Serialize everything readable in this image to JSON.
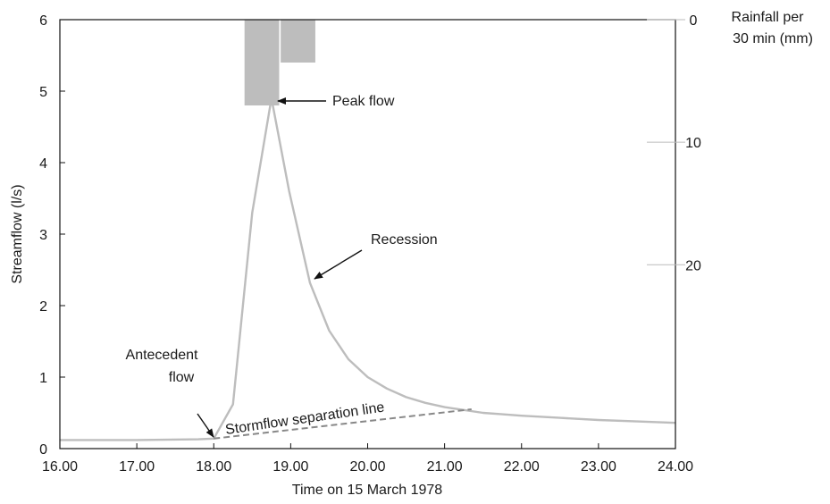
{
  "chart_data": {
    "type": "line",
    "xlabel": "Time on 15 March 1978",
    "ylabel": "Streamflow (l/s)",
    "y2label_lines": [
      "Rainfall per",
      "30 min (mm)"
    ],
    "xlim": [
      16,
      24
    ],
    "ylim": [
      0,
      6
    ],
    "y2lim": [
      0,
      35
    ],
    "y2_inverted": true,
    "x_ticks": [
      16,
      17,
      18,
      19,
      20,
      21,
      22,
      23,
      24
    ],
    "x_tick_labels": [
      "16.00",
      "17.00",
      "18.00",
      "19.00",
      "20.00",
      "21.00",
      "22.00",
      "23.00",
      "24.00"
    ],
    "y_ticks": [
      0,
      1,
      2,
      3,
      4,
      5,
      6
    ],
    "y_tick_labels": [
      "0",
      "1",
      "2",
      "3",
      "4",
      "5",
      "6"
    ],
    "y2_ticks": [
      0,
      10,
      20
    ],
    "y2_tick_labels": [
      "0",
      "10",
      "20"
    ],
    "grid": false,
    "series": [
      {
        "kind": "line",
        "color": "#bdbdbd",
        "x": [
          16.0,
          17.0,
          17.8,
          18.0,
          18.25,
          18.5,
          18.75,
          18.98,
          19.25,
          19.5,
          19.75,
          20.0,
          20.25,
          20.5,
          20.75,
          21.0,
          21.25,
          21.5,
          21.75,
          22.0,
          22.5,
          23.0,
          23.5,
          24.0
        ],
        "y": [
          0.12,
          0.12,
          0.13,
          0.14,
          0.62,
          3.3,
          4.9,
          3.6,
          2.32,
          1.65,
          1.25,
          1.0,
          0.84,
          0.72,
          0.64,
          0.58,
          0.54,
          0.5,
          0.48,
          0.46,
          0.43,
          0.4,
          0.38,
          0.36
        ]
      },
      {
        "kind": "line",
        "dashed": true,
        "color": "#888888",
        "x": [
          18.0,
          21.35
        ],
        "y": [
          0.14,
          0.55
        ]
      },
      {
        "kind": "bar",
        "color": "#bdbdbd",
        "axis": "y2",
        "x_start": [
          18.4,
          18.87
        ],
        "x_end": [
          18.85,
          19.32
        ],
        "values": [
          7,
          3.5
        ]
      }
    ],
    "annotations": {
      "peak": "Peak flow",
      "recession": "Recession",
      "antecedent_lines": [
        "Antecedent",
        "flow"
      ],
      "separation": "Stormflow separation line"
    }
  }
}
